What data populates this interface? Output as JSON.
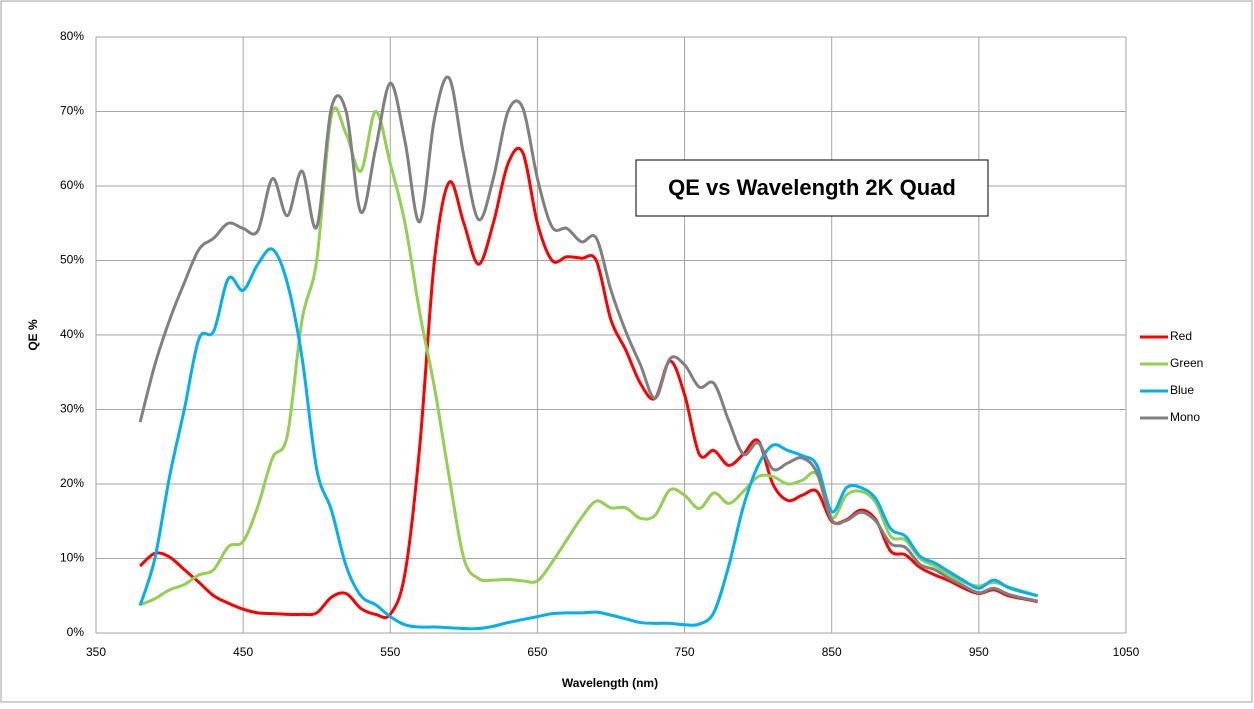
{
  "chart_data": {
    "type": "line",
    "title": "QE vs Wavelength 2K Quad",
    "x_label": "Wavelength (nm)",
    "y_label": "QE %",
    "x": [
      380,
      390,
      400,
      410,
      420,
      430,
      440,
      450,
      460,
      470,
      480,
      490,
      500,
      510,
      520,
      530,
      540,
      550,
      560,
      570,
      580,
      590,
      600,
      610,
      620,
      630,
      640,
      650,
      660,
      670,
      680,
      690,
      700,
      710,
      720,
      730,
      740,
      750,
      760,
      770,
      780,
      790,
      800,
      810,
      820,
      830,
      840,
      850,
      860,
      870,
      880,
      890,
      900,
      910,
      920,
      930,
      940,
      950,
      960,
      970,
      980,
      990
    ],
    "series": [
      {
        "name": "Red",
        "color": "#ff0000",
        "values": [
          9,
          10.7,
          10.2,
          8.5,
          6.8,
          5,
          4,
          3.2,
          2.7,
          2.6,
          2.5,
          2.5,
          2.7,
          4.8,
          5.3,
          3.3,
          2.5,
          2.5,
          8,
          25,
          50,
          60.5,
          55,
          49.5,
          55,
          63,
          64.5,
          55,
          50,
          50.5,
          50.3,
          50,
          42,
          38,
          33.5,
          31.5,
          36.5,
          32,
          24,
          24.5,
          22.5,
          24,
          25.8,
          20,
          17.8,
          18.5,
          19,
          15,
          15.2,
          16.5,
          15.2,
          11,
          10.5,
          8.8,
          7.8,
          7,
          6,
          5.3,
          5.8,
          5,
          4.6,
          4.2
        ]
      },
      {
        "name": "Green",
        "color": "#92d050",
        "values": [
          3.8,
          4.6,
          5.8,
          6.5,
          7.8,
          8.5,
          11.6,
          12.3,
          17,
          23.5,
          26.5,
          42,
          50,
          69.5,
          67,
          62,
          70,
          63,
          55,
          43,
          33,
          21,
          10,
          7.3,
          7.1,
          7.2,
          7,
          7,
          9.5,
          12.5,
          15.5,
          17.7,
          16.8,
          16.8,
          15.4,
          15.8,
          19.2,
          18.5,
          16.7,
          18.8,
          17.4,
          19,
          21,
          21,
          20,
          20.5,
          21.3,
          15.5,
          18.5,
          19,
          17.5,
          13,
          12.5,
          10,
          9,
          7.8,
          6.8,
          6.3,
          6.8,
          6.2,
          5.6,
          5
        ]
      },
      {
        "name": "Blue",
        "color": "#00b0f0",
        "values": [
          3.7,
          10,
          21,
          30,
          39.5,
          40.5,
          47.6,
          46,
          49.5,
          51.5,
          47,
          37,
          22,
          16.5,
          9,
          5,
          3.8,
          2.2,
          1.1,
          0.8,
          0.8,
          0.7,
          0.6,
          0.6,
          0.9,
          1.4,
          1.8,
          2.2,
          2.6,
          2.7,
          2.7,
          2.8,
          2.4,
          1.9,
          1.4,
          1.3,
          1.3,
          1.1,
          1.2,
          2.8,
          9,
          17,
          22.5,
          25.2,
          24.5,
          23.8,
          22.5,
          16.3,
          19.5,
          19.5,
          18,
          14,
          13,
          10.3,
          9.4,
          8.2,
          7,
          6,
          7.1,
          6.1,
          5.5,
          5
        ]
      },
      {
        "name": "Mono",
        "color": "#808080",
        "values": [
          28.3,
          36,
          42,
          47,
          51.5,
          53,
          55,
          54.3,
          54,
          61,
          56,
          62,
          54.5,
          70.5,
          70,
          56.5,
          65,
          73.8,
          66,
          55.2,
          69,
          74.5,
          64,
          55.5,
          61,
          70,
          70.5,
          61,
          54.5,
          54.3,
          52.5,
          53,
          46,
          40.5,
          36,
          31.5,
          36.8,
          36,
          33,
          33.5,
          28.5,
          24,
          25.5,
          22,
          22.8,
          23.5,
          21.5,
          15.2,
          15.1,
          16.2,
          15,
          12,
          11.5,
          9.2,
          8.5,
          7.3,
          6.3,
          5.4,
          6,
          5.2,
          4.7,
          4.3
        ]
      }
    ],
    "xlim": [
      350,
      1050
    ],
    "xticks": [
      350,
      450,
      550,
      650,
      750,
      850,
      950,
      1050
    ],
    "ylim": [
      0,
      80
    ],
    "yticks": [
      {
        "value": 0,
        "label": "0%"
      },
      {
        "value": 10,
        "label": "10%"
      },
      {
        "value": 20,
        "label": "20%"
      },
      {
        "value": 30,
        "label": "30%"
      },
      {
        "value": 40,
        "label": "40%"
      },
      {
        "value": 50,
        "label": "50%"
      },
      {
        "value": 60,
        "label": "60%"
      },
      {
        "value": 70,
        "label": "70%"
      },
      {
        "value": 80,
        "label": "80%"
      }
    ],
    "grid": true,
    "legend": "right"
  }
}
